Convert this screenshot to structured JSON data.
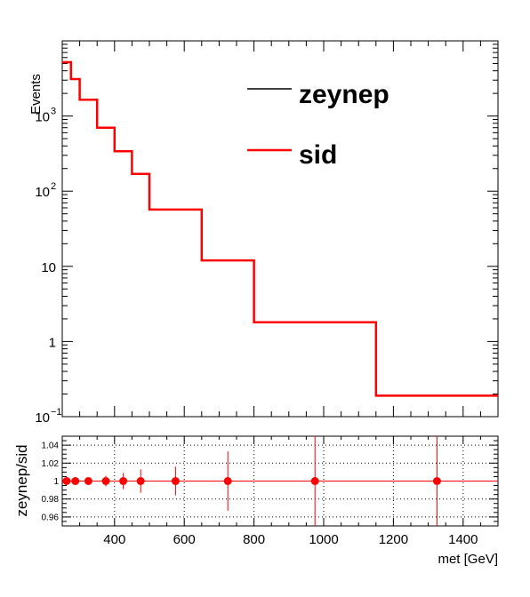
{
  "chart_data": [
    {
      "type": "line",
      "style": "step-histogram",
      "ylabel": "Events",
      "yscale": "log",
      "ylim": [
        0.1,
        10000
      ],
      "xlim": [
        250,
        1500
      ],
      "y_tick_labels": [
        {
          "value": 0.1,
          "base": "10",
          "exp": "−1"
        },
        {
          "value": 1,
          "base": "1",
          "exp": ""
        },
        {
          "value": 10,
          "base": "10",
          "exp": ""
        },
        {
          "value": 100,
          "base": "10",
          "exp": "2"
        },
        {
          "value": 1000,
          "base": "10",
          "exp": "3"
        }
      ],
      "legend_position": "top-right",
      "series": [
        {
          "name": "zeynep",
          "color": "#000000",
          "edges": [
            250,
            275,
            300,
            350,
            400,
            450,
            500,
            650,
            800,
            1150,
            1500
          ],
          "values": [
            5200,
            3100,
            1650,
            700,
            340,
            170,
            57,
            12,
            1.8,
            0.19
          ]
        },
        {
          "name": "sid",
          "color": "#ff0000",
          "edges": [
            250,
            275,
            300,
            350,
            400,
            450,
            500,
            650,
            800,
            1150,
            1500
          ],
          "values": [
            5200,
            3100,
            1650,
            700,
            340,
            170,
            57,
            12,
            1.8,
            0.19
          ]
        }
      ]
    },
    {
      "type": "scatter",
      "xlabel": "met [GeV]",
      "ylabel": "zeynep/sid",
      "xlim": [
        250,
        1500
      ],
      "ylim": [
        0.95,
        1.05
      ],
      "x_ticks": [
        400,
        600,
        800,
        1000,
        1200,
        1400
      ],
      "y_ticks": [
        0.96,
        0.98,
        1,
        1.02,
        1.04
      ],
      "y_tick_labels": [
        "0.96",
        "0.98",
        "1",
        "1.02",
        "1.04"
      ],
      "grid": true,
      "reference_line": 1,
      "color": "#ff0000",
      "points": [
        {
          "x": 262.5,
          "y": 1,
          "xerr": 12.5,
          "yerr": 0.002
        },
        {
          "x": 287.5,
          "y": 1,
          "xerr": 12.5,
          "yerr": 0.003
        },
        {
          "x": 325,
          "y": 1,
          "xerr": 25,
          "yerr": 0.004
        },
        {
          "x": 375,
          "y": 1,
          "xerr": 25,
          "yerr": 0.006
        },
        {
          "x": 425,
          "y": 1,
          "xerr": 25,
          "yerr": 0.009
        },
        {
          "x": 475,
          "y": 1,
          "xerr": 25,
          "yerr": 0.013
        },
        {
          "x": 575,
          "y": 1,
          "xerr": 75,
          "yerr": 0.016
        },
        {
          "x": 725,
          "y": 1,
          "xerr": 75,
          "yerr": 0.033
        },
        {
          "x": 975,
          "y": 1,
          "xerr": 175,
          "yerr": 0.12
        },
        {
          "x": 1325,
          "y": 1,
          "xerr": 175,
          "yerr": 0.4
        }
      ]
    }
  ]
}
